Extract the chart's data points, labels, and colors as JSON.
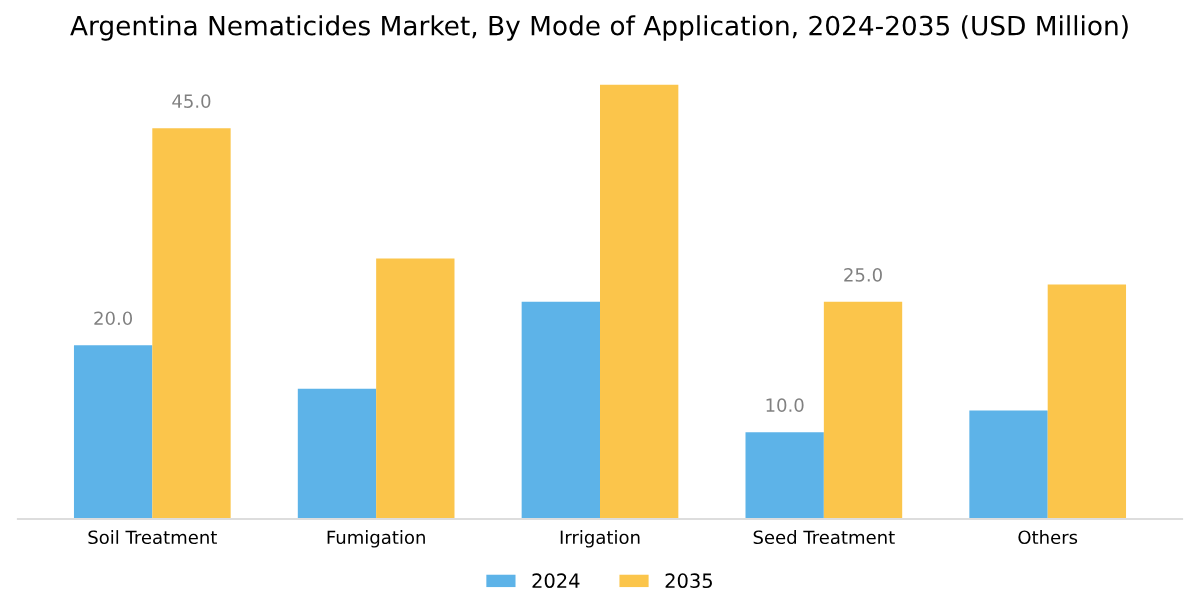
{
  "chart_data": {
    "type": "bar",
    "title": "Argentina Nematicides Market, By Mode of Application, 2024-2035 (USD Million)",
    "categories": [
      "Soil Treatment",
      "Fumigation",
      "Irrigation",
      "Seed Treatment",
      "Others"
    ],
    "series": [
      {
        "name": "2024",
        "color": "#5db3e8",
        "values": [
          20.0,
          15.0,
          25.0,
          10.0,
          12.5
        ],
        "value_labels": [
          "20.0",
          null,
          null,
          "10.0",
          null
        ]
      },
      {
        "name": "2035",
        "color": "#fbc54b",
        "values": [
          45.0,
          30.0,
          50.0,
          25.0,
          27.0
        ],
        "value_labels": [
          "45.0",
          null,
          null,
          "25.0",
          null
        ]
      }
    ],
    "legend": "bottom",
    "grid": false
  }
}
